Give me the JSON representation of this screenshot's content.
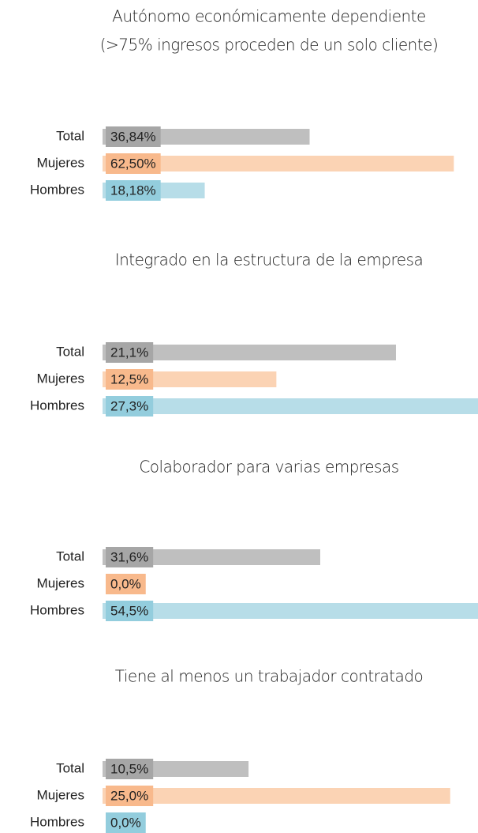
{
  "chart_data": [
    {
      "type": "bar",
      "title": [
        "Autónomo económicamente dependiente",
        "(>75% ingresos proceden de un solo cliente)"
      ],
      "categories": [
        "Total",
        "Mujeres",
        "Hombres"
      ],
      "values": [
        36.84,
        62.5,
        18.18
      ],
      "value_labels": [
        "36,84%",
        "62,50%",
        "18,18%"
      ],
      "colors": [
        "#bfbfbf",
        "#fbd3b4",
        "#b7dde8"
      ],
      "xlim": [
        0,
        66.8
      ]
    },
    {
      "type": "bar",
      "title": [
        "Integrado en la estructura de la empresa"
      ],
      "categories": [
        "Total",
        "Mujeres",
        "Hombres"
      ],
      "values": [
        21.1,
        12.5,
        27.3
      ],
      "value_labels": [
        "21,1%",
        "12,5%",
        "27,3%"
      ],
      "colors": [
        "#bfbfbf",
        "#fbd3b4",
        "#b7dde8"
      ],
      "xlim": [
        0,
        27
      ]
    },
    {
      "type": "bar",
      "title": [
        "Colaborador para varias empresas"
      ],
      "categories": [
        "Total",
        "Mujeres",
        "Hombres"
      ],
      "values": [
        31.6,
        0,
        54.5
      ],
      "value_labels": [
        "31,6%",
        "0,0%",
        "54,5%"
      ],
      "colors": [
        "#bfbfbf",
        "#fbd3b4",
        "#b7dde8"
      ],
      "xlim": [
        0,
        54.5
      ]
    },
    {
      "type": "bar",
      "title": [
        "Tiene al menos un trabajador contratado"
      ],
      "categories": [
        "Total",
        "Mujeres",
        "Hombres"
      ],
      "values": [
        10.5,
        25,
        0
      ],
      "value_labels": [
        "10,5%",
        "25,0%",
        "0,0%"
      ],
      "colors": [
        "#bfbfbf",
        "#fbd3b4",
        "#b7dde8"
      ],
      "xlim": [
        0,
        27
      ]
    }
  ]
}
